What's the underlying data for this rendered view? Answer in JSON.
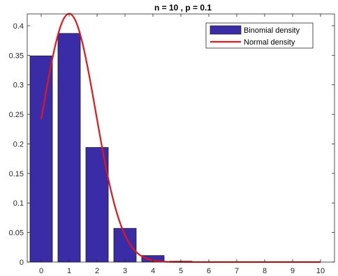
{
  "chart_data": {
    "type": "bar",
    "title": "n = 10 , p = 0.1",
    "xlabel": "",
    "ylabel": "",
    "categories": [
      0,
      1,
      2,
      3,
      4,
      5,
      6,
      7,
      8,
      9,
      10
    ],
    "xlim": [
      -0.5,
      10.5
    ],
    "ylim": [
      0,
      0.42
    ],
    "yticks": [
      0,
      0.05,
      0.1,
      0.15,
      0.2,
      0.25,
      0.3,
      0.35,
      0.4
    ],
    "ytick_labels": [
      "0",
      "0.05",
      "0.1",
      "0.15",
      "0.2",
      "0.25",
      "0.3",
      "0.35",
      "0.4"
    ],
    "xtick_labels": [
      "0",
      "1",
      "2",
      "3",
      "4",
      "5",
      "6",
      "7",
      "8",
      "9",
      "10"
    ],
    "grid": false,
    "legend_position": "top-right",
    "series": [
      {
        "name": "Binomial density",
        "kind": "bar",
        "color": "#3a2ba6",
        "values": [
          0.349,
          0.387,
          0.194,
          0.057,
          0.011,
          0.0015,
          0.0001,
          0,
          0,
          0,
          0
        ]
      },
      {
        "name": "Normal density",
        "kind": "line",
        "color": "#e8141b",
        "mean": 1,
        "sd": 0.9487,
        "x_range": [
          0,
          10
        ]
      }
    ]
  }
}
